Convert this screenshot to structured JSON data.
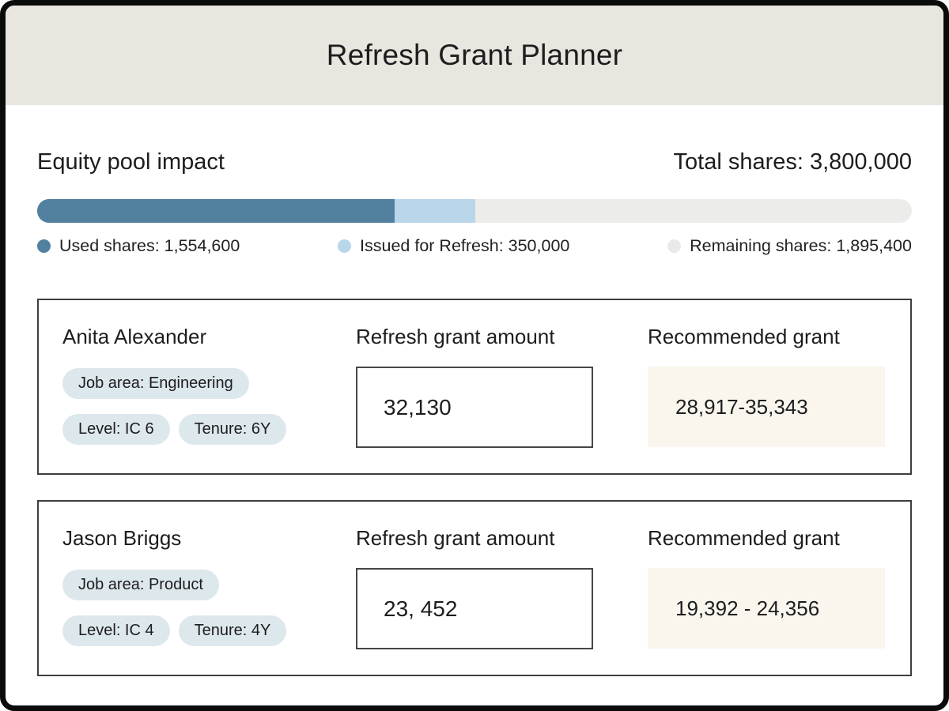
{
  "window": {
    "title": "Refresh Grant Planner"
  },
  "equity_section": {
    "heading": "Equity pool impact",
    "total_shares_label": "Total shares: 3,800,000",
    "bar": {
      "used_width": "40.91%",
      "issued_width": "9.21%",
      "used_color": "#52809f",
      "issued_color": "#b9d6ea",
      "track_color": "#ececea"
    },
    "legend": {
      "used": {
        "label": "Used shares: 1,554,600",
        "color": "#52809f"
      },
      "issued": {
        "label": "Issued for Refresh: 350,000",
        "color": "#b9d6ea"
      },
      "remaining": {
        "label": "Remaining shares: 1,895,400",
        "color": "#e9e9e7"
      }
    }
  },
  "cards": [
    {
      "name": "Anita Alexander",
      "chips": [
        "Job area: Engineering",
        "Level: IC 6",
        "Tenure: 6Y"
      ],
      "grant_label": "Refresh grant amount",
      "grant_value": "32,130",
      "recommended_label": "Recommended grant",
      "recommended_range": "28,917-35,343"
    },
    {
      "name": "Jason Briggs",
      "chips": [
        "Job area: Product",
        "Level: IC 4",
        "Tenure: 4Y"
      ],
      "grant_label": "Refresh grant amount",
      "grant_value": "23, 452",
      "recommended_label": "Recommended grant",
      "recommended_range": "19,392 - 24,356"
    }
  ]
}
